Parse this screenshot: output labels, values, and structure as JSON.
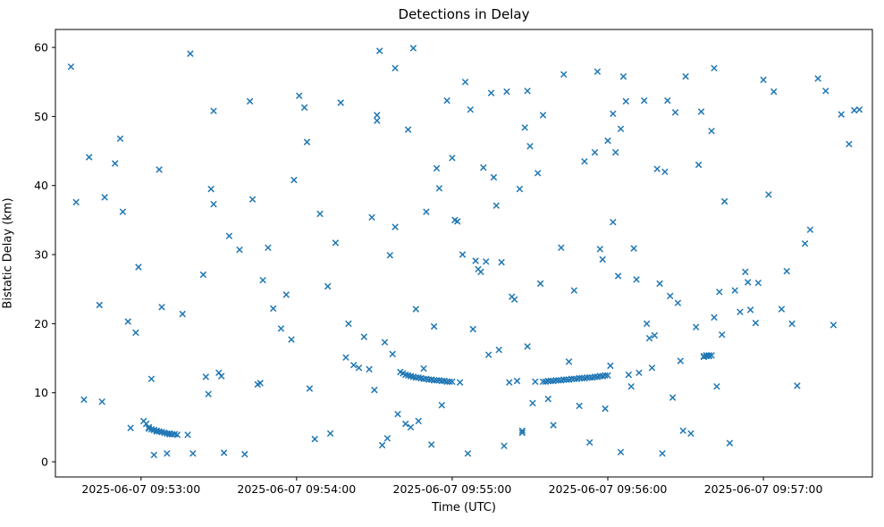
{
  "figure": {
    "title": "Detections in Delay",
    "xlabel": "Time (UTC)",
    "ylabel": "Bistatic Delay (km)"
  },
  "chart_data": {
    "type": "scatter",
    "title": "Detections in Delay",
    "xlabel": "Time (UTC)",
    "ylabel": "Bistatic Delay (km)",
    "marker": "x",
    "marker_color": "#1f77b4",
    "legend": "none",
    "grid": false,
    "x_unit": "seconds after 2025-06-07 09:52:00 UTC",
    "xlim": [
      27,
      342
    ],
    "ylim": [
      -2.2,
      62.6
    ],
    "x_ticks": [
      {
        "value": 60,
        "label": "2025-06-07 09:53:00"
      },
      {
        "value": 120,
        "label": "2025-06-07 09:54:00"
      },
      {
        "value": 180,
        "label": "2025-06-07 09:55:00"
      },
      {
        "value": 240,
        "label": "2025-06-07 09:56:00"
      },
      {
        "value": 300,
        "label": "2025-06-07 09:57:00"
      }
    ],
    "y_ticks": [
      0,
      10,
      20,
      30,
      40,
      50,
      60
    ],
    "points": [
      [
        33,
        57.2
      ],
      [
        35,
        37.6
      ],
      [
        38,
        9.0
      ],
      [
        40,
        44.1
      ],
      [
        44,
        22.7
      ],
      [
        45,
        8.7
      ],
      [
        46,
        38.3
      ],
      [
        50,
        43.2
      ],
      [
        52,
        46.8
      ],
      [
        53,
        36.2
      ],
      [
        55,
        20.3
      ],
      [
        56,
        4.9
      ],
      [
        58,
        18.7
      ],
      [
        59,
        28.2
      ],
      [
        61,
        5.9
      ],
      [
        62,
        5.5
      ],
      [
        63,
        5.0
      ],
      [
        63,
        4.8
      ],
      [
        64,
        4.7
      ],
      [
        64,
        12.0
      ],
      [
        65,
        4.6
      ],
      [
        65,
        1.0
      ],
      [
        66,
        4.5
      ],
      [
        66,
        4.4
      ],
      [
        67,
        4.4
      ],
      [
        67,
        42.3
      ],
      [
        68,
        4.3
      ],
      [
        68,
        22.4
      ],
      [
        69,
        4.2
      ],
      [
        70,
        4.1
      ],
      [
        70,
        1.2
      ],
      [
        71,
        4.1
      ],
      [
        71,
        4.0
      ],
      [
        72,
        4.0
      ],
      [
        73,
        4.0
      ],
      [
        74,
        3.9
      ],
      [
        76,
        21.4
      ],
      [
        78,
        3.9
      ],
      [
        79,
        59.1
      ],
      [
        80,
        1.2
      ],
      [
        84,
        27.1
      ],
      [
        85,
        12.3
      ],
      [
        86,
        9.8
      ],
      [
        87,
        39.5
      ],
      [
        88,
        50.8
      ],
      [
        88,
        37.3
      ],
      [
        90,
        12.9
      ],
      [
        91,
        12.4
      ],
      [
        92,
        1.3
      ],
      [
        94,
        32.7
      ],
      [
        98,
        30.7
      ],
      [
        100,
        1.1
      ],
      [
        102,
        52.2
      ],
      [
        103,
        38.0
      ],
      [
        105,
        11.2
      ],
      [
        106,
        11.4
      ],
      [
        107,
        26.3
      ],
      [
        109,
        31.0
      ],
      [
        111,
        22.2
      ],
      [
        114,
        19.3
      ],
      [
        116,
        24.2
      ],
      [
        118,
        17.7
      ],
      [
        119,
        40.8
      ],
      [
        121,
        53.0
      ],
      [
        123,
        51.3
      ],
      [
        124,
        46.3
      ],
      [
        125,
        10.6
      ],
      [
        127,
        3.3
      ],
      [
        129,
        35.9
      ],
      [
        132,
        25.4
      ],
      [
        133,
        4.1
      ],
      [
        135,
        31.7
      ],
      [
        137,
        52.0
      ],
      [
        139,
        15.1
      ],
      [
        140,
        20.0
      ],
      [
        142,
        14.0
      ],
      [
        144,
        13.6
      ],
      [
        146,
        18.1
      ],
      [
        148,
        13.4
      ],
      [
        149,
        35.4
      ],
      [
        150,
        10.4
      ],
      [
        151,
        50.2
      ],
      [
        151,
        49.4
      ],
      [
        152,
        59.5
      ],
      [
        153,
        2.4
      ],
      [
        154,
        17.3
      ],
      [
        155,
        3.4
      ],
      [
        156,
        29.9
      ],
      [
        157,
        15.6
      ],
      [
        158,
        34.0
      ],
      [
        158,
        57.0
      ],
      [
        159,
        6.9
      ],
      [
        160,
        13.0
      ],
      [
        161,
        12.8
      ],
      [
        162,
        12.6
      ],
      [
        162,
        5.5
      ],
      [
        163,
        12.5
      ],
      [
        163,
        48.1
      ],
      [
        164,
        12.4
      ],
      [
        164,
        5.0
      ],
      [
        165,
        12.3
      ],
      [
        165,
        59.9
      ],
      [
        166,
        12.2
      ],
      [
        166,
        22.1
      ],
      [
        167,
        12.2
      ],
      [
        167,
        5.9
      ],
      [
        168,
        12.1
      ],
      [
        169,
        12.0
      ],
      [
        169,
        13.5
      ],
      [
        170,
        12.0
      ],
      [
        170,
        36.2
      ],
      [
        171,
        11.9
      ],
      [
        172,
        11.9
      ],
      [
        172,
        2.5
      ],
      [
        173,
        11.8
      ],
      [
        173,
        19.6
      ],
      [
        174,
        11.8
      ],
      [
        174,
        42.5
      ],
      [
        175,
        11.8
      ],
      [
        175,
        39.6
      ],
      [
        176,
        11.7
      ],
      [
        176,
        8.2
      ],
      [
        177,
        11.7
      ],
      [
        178,
        11.6
      ],
      [
        178,
        52.3
      ],
      [
        179,
        11.6
      ],
      [
        180,
        11.6
      ],
      [
        180,
        44.0
      ],
      [
        181,
        35.0
      ],
      [
        182,
        34.8
      ],
      [
        183,
        11.5
      ],
      [
        184,
        30.0
      ],
      [
        185,
        55.0
      ],
      [
        186,
        1.2
      ],
      [
        187,
        51.0
      ],
      [
        188,
        19.2
      ],
      [
        189,
        29.1
      ],
      [
        190,
        27.9
      ],
      [
        191,
        27.5
      ],
      [
        192,
        42.6
      ],
      [
        193,
        29.0
      ],
      [
        194,
        15.5
      ],
      [
        195,
        53.4
      ],
      [
        196,
        41.2
      ],
      [
        197,
        37.1
      ],
      [
        198,
        16.2
      ],
      [
        199,
        28.9
      ],
      [
        200,
        2.3
      ],
      [
        201,
        53.6
      ],
      [
        202,
        11.5
      ],
      [
        203,
        23.9
      ],
      [
        204,
        23.5
      ],
      [
        205,
        11.7
      ],
      [
        206,
        39.5
      ],
      [
        207,
        4.2
      ],
      [
        207,
        4.5
      ],
      [
        208,
        48.4
      ],
      [
        209,
        16.7
      ],
      [
        209,
        53.7
      ],
      [
        210,
        45.7
      ],
      [
        211,
        8.5
      ],
      [
        212,
        11.6
      ],
      [
        213,
        41.8
      ],
      [
        214,
        25.8
      ],
      [
        215,
        50.2
      ],
      [
        215,
        11.6
      ],
      [
        216,
        11.6
      ],
      [
        217,
        11.7
      ],
      [
        217,
        9.1
      ],
      [
        218,
        11.7
      ],
      [
        219,
        11.7
      ],
      [
        219,
        5.3
      ],
      [
        220,
        11.8
      ],
      [
        221,
        11.8
      ],
      [
        222,
        11.8
      ],
      [
        222,
        31.0
      ],
      [
        223,
        11.9
      ],
      [
        223,
        56.1
      ],
      [
        224,
        11.9
      ],
      [
        225,
        11.9
      ],
      [
        225,
        14.5
      ],
      [
        226,
        12.0
      ],
      [
        227,
        12.0
      ],
      [
        227,
        24.8
      ],
      [
        228,
        12.0
      ],
      [
        229,
        12.1
      ],
      [
        229,
        8.1
      ],
      [
        230,
        12.1
      ],
      [
        231,
        12.1
      ],
      [
        231,
        43.5
      ],
      [
        232,
        12.2
      ],
      [
        233,
        12.2
      ],
      [
        233,
        2.8
      ],
      [
        234,
        12.2
      ],
      [
        235,
        12.3
      ],
      [
        235,
        44.8
      ],
      [
        236,
        12.3
      ],
      [
        236,
        56.5
      ],
      [
        237,
        12.4
      ],
      [
        237,
        30.8
      ],
      [
        238,
        12.4
      ],
      [
        238,
        29.3
      ],
      [
        239,
        12.5
      ],
      [
        239,
        7.7
      ],
      [
        240,
        12.5
      ],
      [
        240,
        46.5
      ],
      [
        241,
        13.9
      ],
      [
        242,
        50.4
      ],
      [
        242,
        34.7
      ],
      [
        243,
        44.8
      ],
      [
        244,
        26.9
      ],
      [
        245,
        48.2
      ],
      [
        245,
        1.4
      ],
      [
        246,
        55.8
      ],
      [
        247,
        52.2
      ],
      [
        248,
        12.6
      ],
      [
        249,
        10.9
      ],
      [
        250,
        30.9
      ],
      [
        251,
        26.4
      ],
      [
        252,
        12.9
      ],
      [
        254,
        52.3
      ],
      [
        255,
        20.0
      ],
      [
        256,
        17.9
      ],
      [
        257,
        13.6
      ],
      [
        258,
        18.3
      ],
      [
        259,
        42.4
      ],
      [
        260,
        25.8
      ],
      [
        261,
        1.2
      ],
      [
        262,
        42.0
      ],
      [
        263,
        52.3
      ],
      [
        264,
        24.0
      ],
      [
        265,
        9.3
      ],
      [
        266,
        50.6
      ],
      [
        267,
        23.0
      ],
      [
        268,
        14.6
      ],
      [
        269,
        4.5
      ],
      [
        270,
        55.8
      ],
      [
        272,
        4.1
      ],
      [
        274,
        19.5
      ],
      [
        275,
        43.0
      ],
      [
        276,
        50.7
      ],
      [
        277,
        15.2
      ],
      [
        277,
        15.3
      ],
      [
        278,
        15.3
      ],
      [
        278,
        15.4
      ],
      [
        279,
        15.3
      ],
      [
        279,
        15.4
      ],
      [
        280,
        15.4
      ],
      [
        280,
        47.9
      ],
      [
        281,
        57.0
      ],
      [
        281,
        20.9
      ],
      [
        282,
        10.9
      ],
      [
        283,
        24.6
      ],
      [
        284,
        18.4
      ],
      [
        285,
        37.7
      ],
      [
        287,
        2.7
      ],
      [
        289,
        24.8
      ],
      [
        291,
        21.7
      ],
      [
        293,
        27.5
      ],
      [
        294,
        26.0
      ],
      [
        295,
        22.0
      ],
      [
        297,
        20.1
      ],
      [
        298,
        25.9
      ],
      [
        300,
        55.3
      ],
      [
        302,
        38.7
      ],
      [
        304,
        53.6
      ],
      [
        307,
        22.1
      ],
      [
        309,
        27.6
      ],
      [
        311,
        20.0
      ],
      [
        313,
        11.0
      ],
      [
        316,
        31.6
      ],
      [
        318,
        33.6
      ],
      [
        321,
        55.5
      ],
      [
        324,
        53.7
      ],
      [
        327,
        19.8
      ],
      [
        330,
        50.3
      ],
      [
        333,
        46.0
      ],
      [
        335,
        50.9
      ],
      [
        337,
        51.0
      ]
    ]
  }
}
